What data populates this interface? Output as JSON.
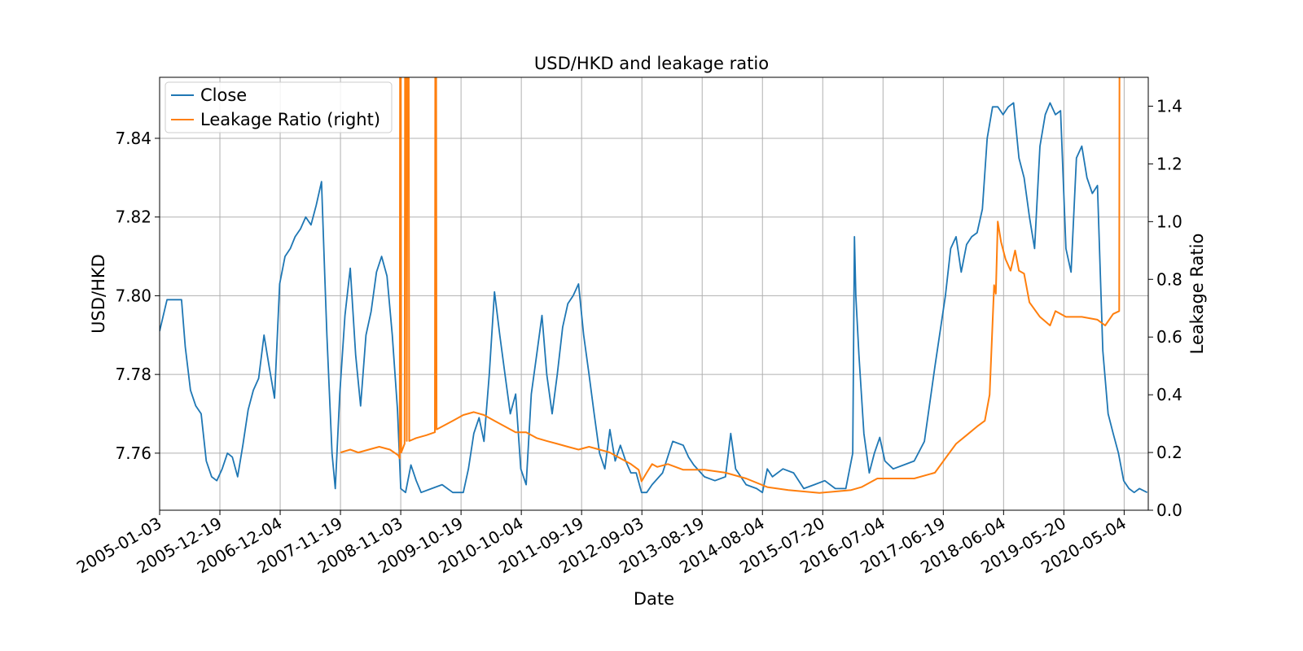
{
  "chart_data": {
    "type": "line",
    "title": "USD/HKD and leakage ratio",
    "xlabel": "Date",
    "ylabel": "USD/HKD",
    "y2label": "Leakage Ratio",
    "x_tick_labels": [
      "2005-01-03",
      "2005-12-19",
      "2006-12-04",
      "2007-11-19",
      "2008-11-03",
      "2009-10-19",
      "2010-10-04",
      "2011-09-19",
      "2012-09-03",
      "2013-08-19",
      "2014-08-04",
      "2015-07-20",
      "2016-07-04",
      "2017-06-19",
      "2018-06-04",
      "2019-05-20",
      "2020-05-04"
    ],
    "xlim": [
      "2005-01-03",
      "2020-09-21"
    ],
    "ylim": [
      7.7455,
      7.8555
    ],
    "y_ticks": [
      "7.76",
      "7.78",
      "7.80",
      "7.82",
      "7.84"
    ],
    "y2lim": [
      0.0,
      1.5
    ],
    "y2_ticks": [
      "0.0",
      "0.2",
      "0.4",
      "0.6",
      "0.8",
      "1.0",
      "1.2",
      "1.4"
    ],
    "grid": true,
    "legend_position": "top-left",
    "series": [
      {
        "name": "Close",
        "axis": "left",
        "color": "#1f77b4",
        "points": [
          [
            "2005-01-03",
            7.791
          ],
          [
            "2005-02-15",
            7.799
          ],
          [
            "2005-04-01",
            7.799
          ],
          [
            "2005-05-10",
            7.799
          ],
          [
            "2005-06-01",
            7.787
          ],
          [
            "2005-07-01",
            7.776
          ],
          [
            "2005-08-01",
            7.772
          ],
          [
            "2005-09-01",
            7.77
          ],
          [
            "2005-10-01",
            7.758
          ],
          [
            "2005-11-01",
            7.754
          ],
          [
            "2005-12-01",
            7.753
          ],
          [
            "2006-01-01",
            7.756
          ],
          [
            "2006-02-01",
            7.76
          ],
          [
            "2006-03-01",
            7.759
          ],
          [
            "2006-04-01",
            7.754
          ],
          [
            "2006-05-01",
            7.762
          ],
          [
            "2006-06-01",
            7.771
          ],
          [
            "2006-07-01",
            7.776
          ],
          [
            "2006-08-01",
            7.779
          ],
          [
            "2006-09-01",
            7.79
          ],
          [
            "2006-10-01",
            7.782
          ],
          [
            "2006-11-01",
            7.774
          ],
          [
            "2006-12-01",
            7.803
          ],
          [
            "2007-01-01",
            7.81
          ],
          [
            "2007-02-01",
            7.812
          ],
          [
            "2007-03-01",
            7.815
          ],
          [
            "2007-04-01",
            7.817
          ],
          [
            "2007-05-01",
            7.82
          ],
          [
            "2007-06-01",
            7.818
          ],
          [
            "2007-07-01",
            7.823
          ],
          [
            "2007-08-01",
            7.829
          ],
          [
            "2007-08-20",
            7.805
          ],
          [
            "2007-09-01",
            7.79
          ],
          [
            "2007-10-01",
            7.76
          ],
          [
            "2007-10-20",
            7.751
          ],
          [
            "2007-11-15",
            7.775
          ],
          [
            "2007-12-15",
            7.795
          ],
          [
            "2008-01-15",
            7.807
          ],
          [
            "2008-02-15",
            7.785
          ],
          [
            "2008-03-15",
            7.772
          ],
          [
            "2008-04-15",
            7.79
          ],
          [
            "2008-05-15",
            7.796
          ],
          [
            "2008-06-15",
            7.806
          ],
          [
            "2008-07-15",
            7.81
          ],
          [
            "2008-08-15",
            7.805
          ],
          [
            "2008-09-15",
            7.79
          ],
          [
            "2008-10-15",
            7.771
          ],
          [
            "2008-11-03",
            7.751
          ],
          [
            "2008-12-01",
            7.75
          ],
          [
            "2009-01-01",
            7.757
          ],
          [
            "2009-02-01",
            7.753
          ],
          [
            "2009-03-01",
            7.75
          ],
          [
            "2009-05-01",
            7.751
          ],
          [
            "2009-07-01",
            7.752
          ],
          [
            "2009-09-01",
            7.75
          ],
          [
            "2009-11-01",
            7.75
          ],
          [
            "2009-12-01",
            7.756
          ],
          [
            "2010-01-01",
            7.765
          ],
          [
            "2010-02-01",
            7.769
          ],
          [
            "2010-03-01",
            7.763
          ],
          [
            "2010-04-01",
            7.78
          ],
          [
            "2010-05-01",
            7.801
          ],
          [
            "2010-06-01",
            7.79
          ],
          [
            "2010-07-01",
            7.78
          ],
          [
            "2010-08-01",
            7.77
          ],
          [
            "2010-09-01",
            7.775
          ],
          [
            "2010-10-01",
            7.756
          ],
          [
            "2010-11-01",
            7.752
          ],
          [
            "2010-12-01",
            7.775
          ],
          [
            "2011-01-01",
            7.785
          ],
          [
            "2011-02-01",
            7.795
          ],
          [
            "2011-03-01",
            7.78
          ],
          [
            "2011-04-01",
            7.77
          ],
          [
            "2011-05-01",
            7.78
          ],
          [
            "2011-06-01",
            7.792
          ],
          [
            "2011-07-01",
            7.798
          ],
          [
            "2011-08-01",
            7.8
          ],
          [
            "2011-09-01",
            7.803
          ],
          [
            "2011-10-01",
            7.79
          ],
          [
            "2011-11-01",
            7.78
          ],
          [
            "2011-12-01",
            7.77
          ],
          [
            "2012-01-01",
            7.76
          ],
          [
            "2012-02-01",
            7.756
          ],
          [
            "2012-03-01",
            7.766
          ],
          [
            "2012-04-01",
            7.758
          ],
          [
            "2012-05-01",
            7.762
          ],
          [
            "2012-06-01",
            7.758
          ],
          [
            "2012-07-01",
            7.755
          ],
          [
            "2012-08-01",
            7.755
          ],
          [
            "2012-09-01",
            7.75
          ],
          [
            "2012-10-01",
            7.75
          ],
          [
            "2012-11-01",
            7.752
          ],
          [
            "2013-01-01",
            7.755
          ],
          [
            "2013-03-01",
            7.763
          ],
          [
            "2013-05-01",
            7.762
          ],
          [
            "2013-06-01",
            7.759
          ],
          [
            "2013-07-01",
            7.757
          ],
          [
            "2013-09-01",
            7.754
          ],
          [
            "2013-11-01",
            7.753
          ],
          [
            "2014-01-01",
            7.754
          ],
          [
            "2014-02-01",
            7.765
          ],
          [
            "2014-03-01",
            7.756
          ],
          [
            "2014-05-01",
            7.752
          ],
          [
            "2014-07-01",
            7.751
          ],
          [
            "2014-08-04",
            7.75
          ],
          [
            "2014-09-01",
            7.756
          ],
          [
            "2014-10-01",
            7.754
          ],
          [
            "2014-12-01",
            7.756
          ],
          [
            "2015-02-01",
            7.755
          ],
          [
            "2015-04-01",
            7.751
          ],
          [
            "2015-06-01",
            7.752
          ],
          [
            "2015-08-01",
            7.753
          ],
          [
            "2015-10-01",
            7.751
          ],
          [
            "2015-12-01",
            7.751
          ],
          [
            "2016-01-10",
            7.76
          ],
          [
            "2016-01-20",
            7.815
          ],
          [
            "2016-01-28",
            7.8
          ],
          [
            "2016-02-15",
            7.785
          ],
          [
            "2016-03-15",
            7.765
          ],
          [
            "2016-04-15",
            7.755
          ],
          [
            "2016-05-15",
            7.76
          ],
          [
            "2016-06-15",
            7.764
          ],
          [
            "2016-07-15",
            7.758
          ],
          [
            "2016-09-01",
            7.756
          ],
          [
            "2016-11-01",
            7.757
          ],
          [
            "2017-01-01",
            7.758
          ],
          [
            "2017-03-01",
            7.763
          ],
          [
            "2017-05-01",
            7.782
          ],
          [
            "2017-07-01",
            7.8
          ],
          [
            "2017-08-01",
            7.812
          ],
          [
            "2017-09-01",
            7.815
          ],
          [
            "2017-10-01",
            7.806
          ],
          [
            "2017-11-01",
            7.813
          ],
          [
            "2017-12-01",
            7.815
          ],
          [
            "2018-01-01",
            7.816
          ],
          [
            "2018-02-01",
            7.822
          ],
          [
            "2018-03-01",
            7.84
          ],
          [
            "2018-04-01",
            7.848
          ],
          [
            "2018-05-01",
            7.848
          ],
          [
            "2018-06-01",
            7.846
          ],
          [
            "2018-07-01",
            7.848
          ],
          [
            "2018-08-01",
            7.849
          ],
          [
            "2018-09-01",
            7.835
          ],
          [
            "2018-10-01",
            7.83
          ],
          [
            "2018-11-01",
            7.82
          ],
          [
            "2018-12-01",
            7.812
          ],
          [
            "2019-01-01",
            7.838
          ],
          [
            "2019-02-01",
            7.846
          ],
          [
            "2019-03-01",
            7.849
          ],
          [
            "2019-04-01",
            7.846
          ],
          [
            "2019-05-01",
            7.847
          ],
          [
            "2019-06-01",
            7.812
          ],
          [
            "2019-07-01",
            7.806
          ],
          [
            "2019-08-01",
            7.835
          ],
          [
            "2019-09-01",
            7.838
          ],
          [
            "2019-10-01",
            7.83
          ],
          [
            "2019-11-01",
            7.826
          ],
          [
            "2019-12-01",
            7.828
          ],
          [
            "2020-01-01",
            7.786
          ],
          [
            "2020-02-01",
            7.77
          ],
          [
            "2020-03-01",
            7.765
          ],
          [
            "2020-04-01",
            7.76
          ],
          [
            "2020-05-01",
            7.753
          ],
          [
            "2020-06-01",
            7.751
          ],
          [
            "2020-07-01",
            7.75
          ],
          [
            "2020-08-01",
            7.751
          ],
          [
            "2020-09-15",
            7.75
          ]
        ]
      },
      {
        "name": "Leakage Ratio (right)",
        "axis": "right",
        "color": "#ff7f0e",
        "points": [
          [
            "2007-11-19",
            0.2
          ],
          [
            "2008-01-15",
            0.21
          ],
          [
            "2008-03-01",
            0.2
          ],
          [
            "2008-05-01",
            0.21
          ],
          [
            "2008-07-01",
            0.22
          ],
          [
            "2008-09-01",
            0.21
          ],
          [
            "2008-10-20",
            0.19
          ],
          [
            "2008-10-28",
            0.18
          ],
          [
            "2008-11-01",
            3.0
          ],
          [
            "2008-11-06",
            0.2
          ],
          [
            "2008-11-25",
            0.23
          ],
          [
            "2008-12-01",
            3.0
          ],
          [
            "2008-12-08",
            0.24
          ],
          [
            "2008-12-16",
            3.0
          ],
          [
            "2008-12-22",
            0.24
          ],
          [
            "2009-02-01",
            0.25
          ],
          [
            "2009-04-01",
            0.26
          ],
          [
            "2009-05-20",
            0.27
          ],
          [
            "2009-05-25",
            3.0
          ],
          [
            "2009-05-30",
            0.28
          ],
          [
            "2009-07-01",
            0.29
          ],
          [
            "2009-09-01",
            0.31
          ],
          [
            "2009-11-01",
            0.33
          ],
          [
            "2010-01-01",
            0.34
          ],
          [
            "2010-03-01",
            0.33
          ],
          [
            "2010-05-01",
            0.31
          ],
          [
            "2010-07-01",
            0.29
          ],
          [
            "2010-09-01",
            0.27
          ],
          [
            "2010-11-01",
            0.27
          ],
          [
            "2011-01-01",
            0.25
          ],
          [
            "2011-03-01",
            0.24
          ],
          [
            "2011-05-01",
            0.23
          ],
          [
            "2011-07-01",
            0.22
          ],
          [
            "2011-09-01",
            0.21
          ],
          [
            "2011-11-01",
            0.22
          ],
          [
            "2012-01-01",
            0.21
          ],
          [
            "2012-03-01",
            0.2
          ],
          [
            "2012-05-01",
            0.18
          ],
          [
            "2012-07-01",
            0.16
          ],
          [
            "2012-08-15",
            0.14
          ],
          [
            "2012-09-01",
            0.1
          ],
          [
            "2012-10-01",
            0.13
          ],
          [
            "2012-11-01",
            0.16
          ],
          [
            "2012-12-01",
            0.15
          ],
          [
            "2013-02-01",
            0.16
          ],
          [
            "2013-05-01",
            0.14
          ],
          [
            "2013-09-01",
            0.14
          ],
          [
            "2014-01-01",
            0.13
          ],
          [
            "2014-05-01",
            0.11
          ],
          [
            "2014-09-01",
            0.08
          ],
          [
            "2015-01-01",
            0.07
          ],
          [
            "2015-07-01",
            0.06
          ],
          [
            "2016-01-01",
            0.07
          ],
          [
            "2016-03-01",
            0.08
          ],
          [
            "2016-06-01",
            0.11
          ],
          [
            "2016-09-01",
            0.11
          ],
          [
            "2017-01-01",
            0.11
          ],
          [
            "2017-05-01",
            0.13
          ],
          [
            "2017-07-01",
            0.18
          ],
          [
            "2017-09-01",
            0.23
          ],
          [
            "2017-11-01",
            0.26
          ],
          [
            "2018-01-01",
            0.29
          ],
          [
            "2018-02-15",
            0.31
          ],
          [
            "2018-03-15",
            0.4
          ],
          [
            "2018-04-10",
            0.78
          ],
          [
            "2018-04-20",
            0.75
          ],
          [
            "2018-05-01",
            1.0
          ],
          [
            "2018-05-20",
            0.93
          ],
          [
            "2018-06-15",
            0.87
          ],
          [
            "2018-07-15",
            0.83
          ],
          [
            "2018-08-10",
            0.9
          ],
          [
            "2018-09-01",
            0.83
          ],
          [
            "2018-10-01",
            0.82
          ],
          [
            "2018-11-01",
            0.72
          ],
          [
            "2019-01-01",
            0.67
          ],
          [
            "2019-03-01",
            0.64
          ],
          [
            "2019-04-01",
            0.69
          ],
          [
            "2019-06-01",
            0.67
          ],
          [
            "2019-09-01",
            0.67
          ],
          [
            "2019-12-01",
            0.66
          ],
          [
            "2020-01-15",
            0.64
          ],
          [
            "2020-03-01",
            0.68
          ],
          [
            "2020-04-05",
            0.69
          ],
          [
            "2020-04-10",
            3.0
          ]
        ]
      }
    ]
  }
}
